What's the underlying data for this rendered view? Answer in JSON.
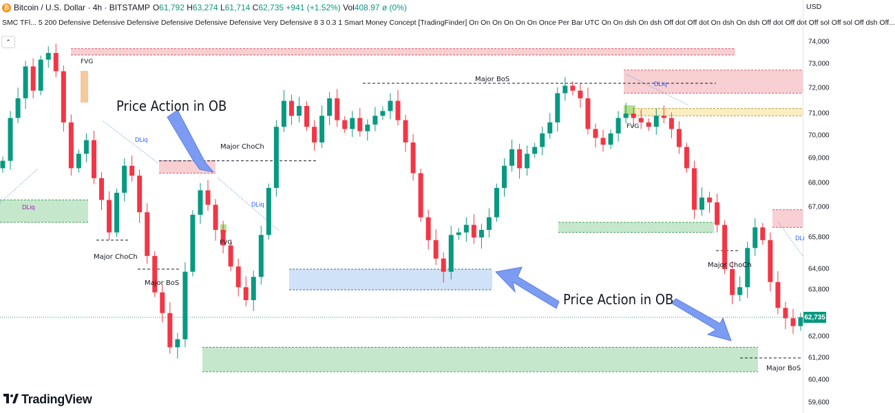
{
  "header": {
    "coin_glyph": "₿",
    "title": "Bitcoin / U.S. Dollar · 4h · BITSTAMP",
    "ohlc": {
      "o_label": "O",
      "o_value": "61,792",
      "h_label": "H",
      "h_value": "63,274",
      "l_label": "L",
      "l_value": "61,714",
      "c_label": "C",
      "c_value": "62,735",
      "change": "+941 (+1.52%)",
      "vol_label": "Vol",
      "vol_value": "408.97 ø (0%)"
    },
    "currency": "USD"
  },
  "indicator_line": "SMC TFl... 5 200 Defensive Defensive Defensive Defensive Defensive Defensive Very Defensive 8 3 0.3 1 Smart Money Concept [TradingFinder] On On On On On On Once Per Bar UTC On On dsh On dsh Off dot Off dot On dsh On dsh Off dot Off dot Off sol Off sol Off dsh Off...",
  "collapse_glyph": "⌃",
  "annotations": {
    "fvg_1": "FVG",
    "fvg_2": "FVG",
    "fvg_3": "FVG",
    "major_bos_top": "Major BoS",
    "major_choch_mid": "Major ChoCh",
    "major_choch_left": "Major ChoCh",
    "major_bos_left": "Major BoS",
    "major_choch_right": "Major ChoCh",
    "major_bos_right": "Major BoS",
    "dliq_left": "DLiq",
    "dliq_1": "DLiq",
    "dliq_2": "DLiq",
    "dliq_3": "DLiq",
    "dliq_4": "DLi",
    "price_action_1": "Price Action in OB",
    "price_action_2": "Price Action in OB"
  },
  "logo": {
    "mark": "𝟏𝟕",
    "text": "TradingView"
  },
  "colors": {
    "bull": "#089981",
    "bear": "#f23645",
    "supply_zone": "#f8cfd3",
    "demand_zone": "#c5e8cc",
    "ob_blue": "#cfe2f7",
    "fvg_yellow": "#fbeec0",
    "fvg_green": "#b5e08a",
    "arrow_blue": "#7c9cf3"
  },
  "chart_data": {
    "type": "candlestick",
    "symbol": "Bitcoin / U.S. Dollar",
    "timeframe": "4h",
    "exchange": "BITSTAMP",
    "y_axis": {
      "ticks": [
        74000,
        73000,
        72000,
        71000,
        70000,
        69000,
        68000,
        67000,
        65800,
        64600,
        63800,
        62735,
        62000,
        61200,
        60400,
        59600
      ],
      "tick_labels": [
        "74,000",
        "73,000",
        "72,000",
        "71,000",
        "70,000",
        "69,000",
        "68,000",
        "67,000",
        "65,800",
        "64,600",
        "63,800",
        "62,735",
        "62,000",
        "61,200",
        "60,400",
        "59,600"
      ],
      "last_price": 62735,
      "last_price_label": "62,735"
    },
    "close_path": [
      68900,
      70800,
      71600,
      72900,
      71900,
      73200,
      73500,
      72700,
      70600,
      68600,
      69200,
      69800,
      68200,
      67300,
      66000,
      67600,
      68700,
      68300,
      66800,
      65100,
      63700,
      62900,
      61600,
      61900,
      64500,
      66700,
      67700,
      67100,
      66100,
      65500,
      64700,
      63900,
      63400,
      64300,
      65900,
      67800,
      70400,
      71500,
      70900,
      71300,
      70400,
      69700,
      70900,
      71600,
      70700,
      70300,
      70800,
      70200,
      70500,
      70900,
      71100,
      71500,
      70700,
      69700,
      68400,
      66600,
      65700,
      65000,
      64500,
      65900,
      66000,
      66300,
      65800,
      66100,
      66600,
      67800,
      68700,
      69400,
      68600,
      69200,
      69500,
      70100,
      70600,
      71800,
      72100,
      71900,
      71600,
      70300,
      69900,
      69600,
      70100,
      70800,
      71000,
      70800,
      70600,
      70400,
      70900,
      70800,
      70300,
      69500,
      68600,
      66900,
      67400,
      67200,
      66300,
      64600,
      63600,
      63900,
      65400,
      66200,
      65700,
      64100,
      63100,
      62700,
      62400,
      62735
    ],
    "zones": [
      {
        "kind": "supply",
        "from": 73410,
        "to": 73700
      },
      {
        "kind": "supply",
        "from": 68400,
        "to": 68900
      },
      {
        "kind": "supply",
        "from": 71800,
        "to": 72750
      },
      {
        "kind": "fvg",
        "from": 70900,
        "to": 71200
      },
      {
        "kind": "supply",
        "from": 66200,
        "to": 66900
      },
      {
        "kind": "demand",
        "from": 66400,
        "to": 67300
      },
      {
        "kind": "ob",
        "from": 63800,
        "to": 64600
      },
      {
        "kind": "demand",
        "from": 66000,
        "to": 66400
      },
      {
        "kind": "demand",
        "from": 60700,
        "to": 61600
      }
    ],
    "structure_levels": [
      {
        "label": "Major BoS",
        "price": 72200
      },
      {
        "label": "Major ChoCh",
        "price": 68900
      },
      {
        "label": "Major ChoCh",
        "price": 65700
      },
      {
        "label": "Major BoS",
        "price": 64600
      },
      {
        "label": "Major ChoCh",
        "price": 65300
      },
      {
        "label": "Major BoS",
        "price": 61200
      }
    ],
    "grid": false
  }
}
